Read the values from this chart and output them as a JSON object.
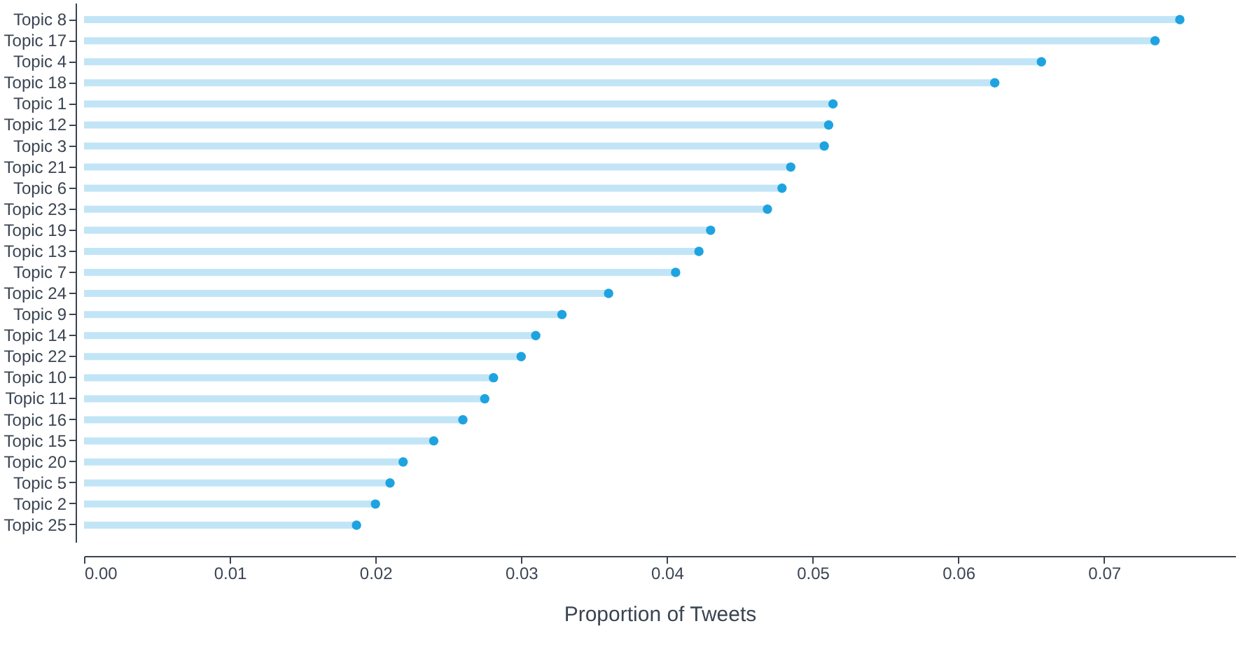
{
  "chart_data": {
    "type": "lollipop",
    "orientation": "horizontal",
    "xlabel": "Proportion of Tweets",
    "categories": [
      "Topic 8",
      "Topic 17",
      "Topic 4",
      "Topic 18",
      "Topic 1",
      "Topic 12",
      "Topic 3",
      "Topic 21",
      "Topic 6",
      "Topic 23",
      "Topic 19",
      "Topic 13",
      "Topic 7",
      "Topic 24",
      "Topic 9",
      "Topic 14",
      "Topic 22",
      "Topic 10",
      "Topic 11",
      "Topic 16",
      "Topic 15",
      "Topic 20",
      "Topic 5",
      "Topic 2",
      "Topic 25"
    ],
    "values": [
      0.0752,
      0.0735,
      0.0657,
      0.0625,
      0.0514,
      0.0511,
      0.0508,
      0.0485,
      0.0479,
      0.0469,
      0.043,
      0.0422,
      0.0406,
      0.036,
      0.0328,
      0.031,
      0.03,
      0.0281,
      0.0275,
      0.026,
      0.024,
      0.0219,
      0.021,
      0.02,
      0.0187
    ],
    "color": "#1fa3e0",
    "xlim": [
      0,
      0.079
    ],
    "xticks": [
      {
        "value": 0,
        "label": "0.00"
      },
      {
        "value": 0.01,
        "label": "0.01"
      },
      {
        "value": 0.02,
        "label": "0.02"
      },
      {
        "value": 0.03,
        "label": "0.03"
      },
      {
        "value": 0.04,
        "label": "0.04"
      },
      {
        "value": 0.05,
        "label": "0.05"
      },
      {
        "value": 0.06,
        "label": "0.06"
      },
      {
        "value": 0.07,
        "label": "0.07"
      }
    ],
    "grid": false,
    "marker": "circle"
  }
}
